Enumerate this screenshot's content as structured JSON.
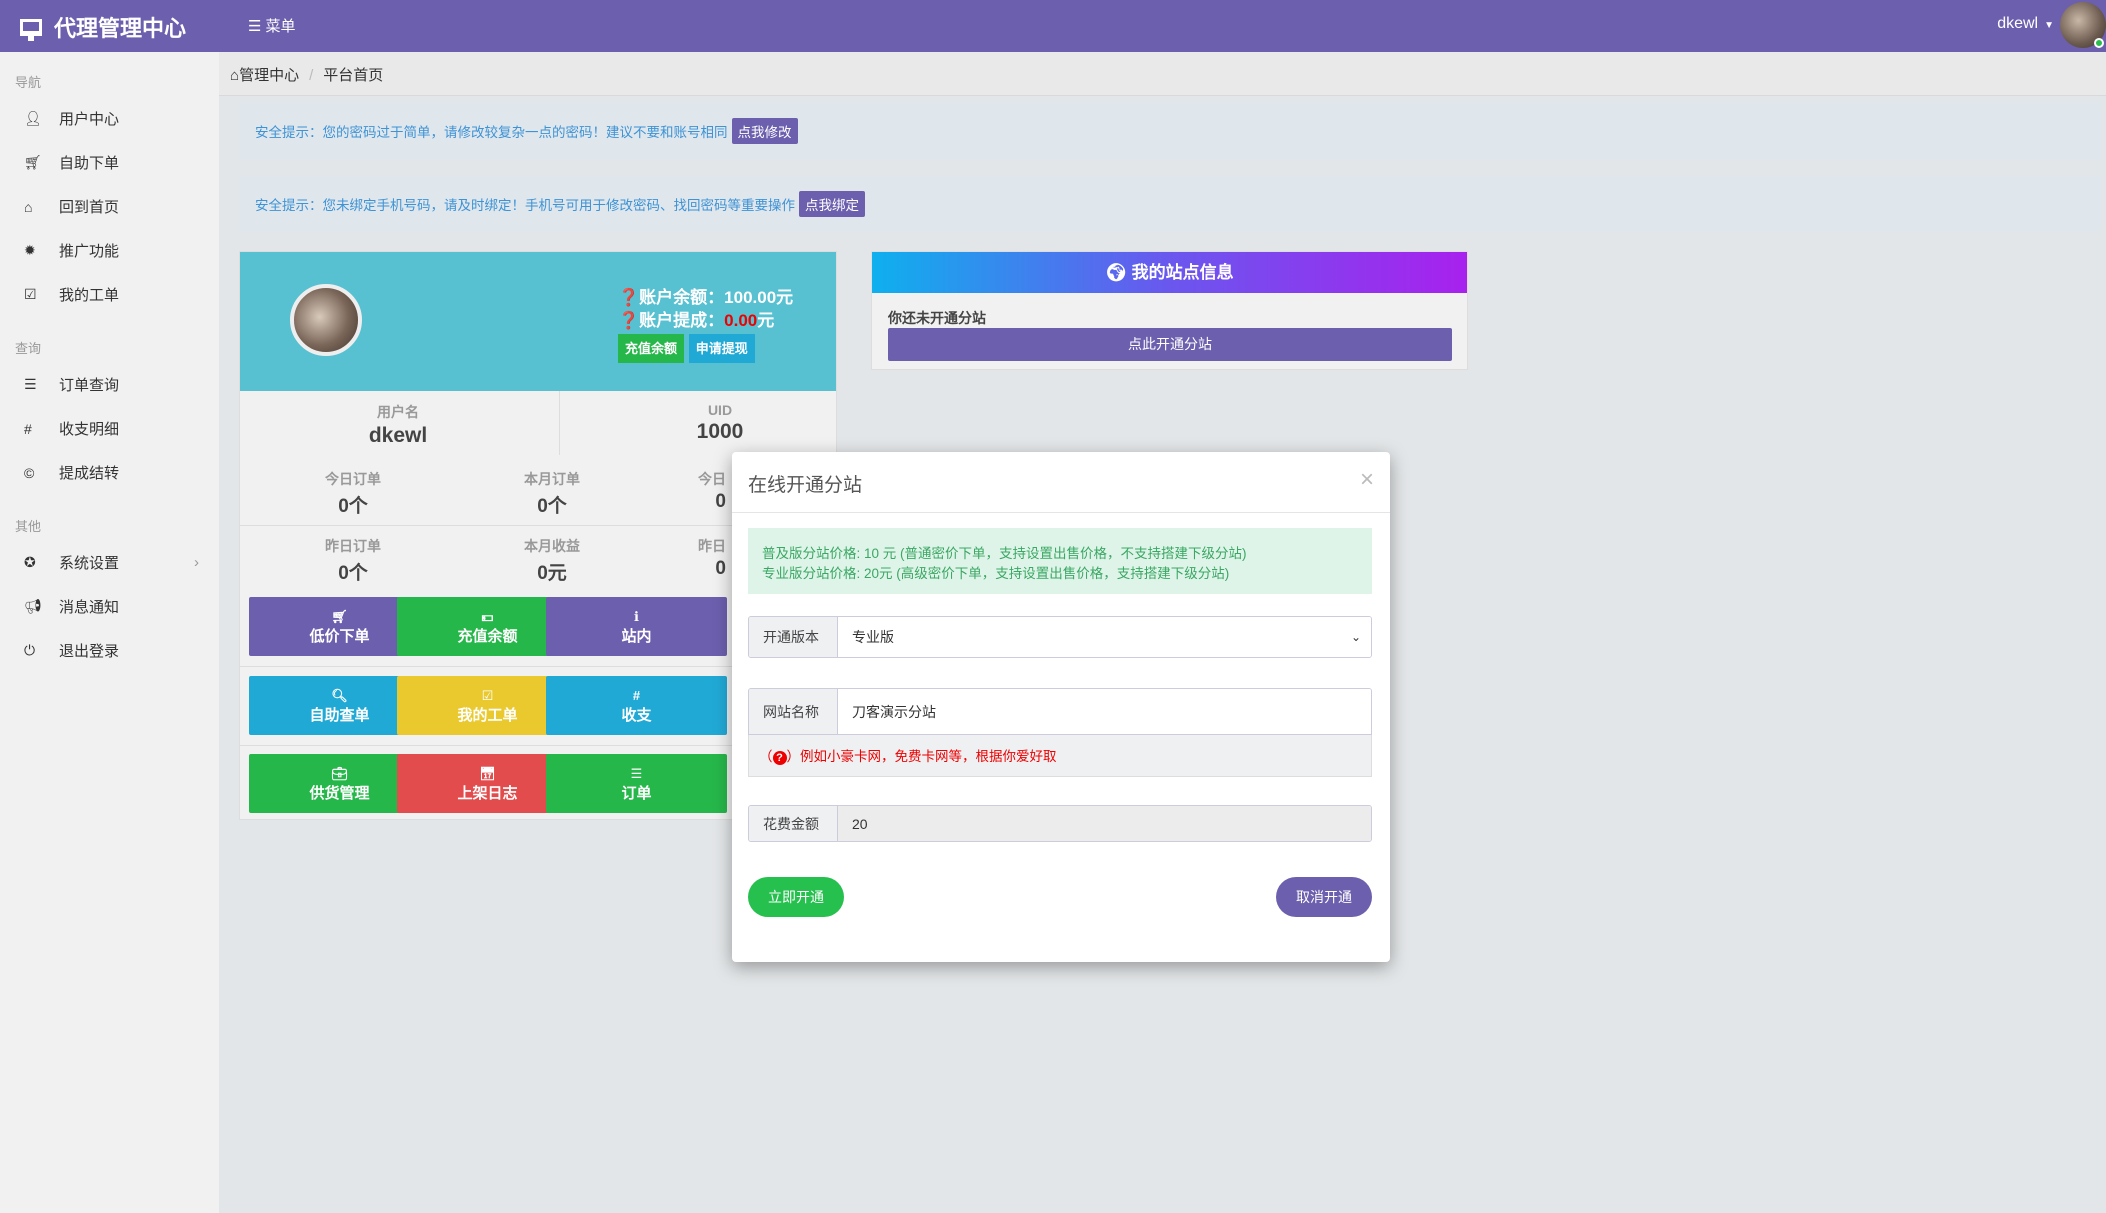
{
  "header": {
    "title": "代理管理中心",
    "menu": "菜单",
    "username": "dkewl"
  },
  "breadcrumb": {
    "home": "管理中心",
    "current": "平台首页"
  },
  "sidebar": {
    "sections": [
      {
        "title": "导航",
        "items": [
          {
            "label": "用户中心",
            "icon": "user-icon"
          },
          {
            "label": "自助下单",
            "icon": "cart-icon"
          },
          {
            "label": "回到首页",
            "icon": "home-icon"
          },
          {
            "label": "推广功能",
            "icon": "gear-icon"
          },
          {
            "label": "我的工单",
            "icon": "check-square-icon"
          }
        ]
      },
      {
        "title": "查询",
        "items": [
          {
            "label": "订单查询",
            "icon": "list-icon"
          },
          {
            "label": "收支明细",
            "icon": "hashtag-icon"
          },
          {
            "label": "提成结转",
            "icon": "copyright-icon"
          }
        ]
      },
      {
        "title": "其他",
        "items": [
          {
            "label": "系统设置",
            "icon": "rebel-icon"
          },
          {
            "label": "消息通知",
            "icon": "bullhorn-icon"
          },
          {
            "label": "退出登录",
            "icon": "power-icon"
          }
        ]
      }
    ]
  },
  "alerts": [
    {
      "text": "安全提示：您的密码过于简单，请修改较复杂一点的密码！建议不要和账号相同",
      "button": "点我修改"
    },
    {
      "text": "安全提示：您未绑定手机号码，请及时绑定！手机号可用于修改密码、找回密码等重要操作",
      "button": "点我绑定"
    }
  ],
  "profile": {
    "balance_label": "❓账户余额：",
    "balance": "100.00元",
    "commission_label": "❓账户提成：",
    "commission": "0.00",
    "commission_unit": "元",
    "recharge": "充值余额",
    "withdraw": "申请提现",
    "username_label": "用户名",
    "username": "dkewl",
    "uid_label": "UID",
    "uid": "1000",
    "stats": [
      {
        "label": "今日订单",
        "value": "0个"
      },
      {
        "label": "本月订单",
        "value": "0个"
      },
      {
        "label": "今日",
        "value": "0"
      },
      {
        "label": "昨日订单",
        "value": "0个"
      },
      {
        "label": "本月收益",
        "value": "0元"
      },
      {
        "label": "昨日",
        "value": "0"
      }
    ],
    "buttons": [
      {
        "label": "低价下单",
        "icon": "cart-icon",
        "color": "#6c5fae"
      },
      {
        "label": "充值余额",
        "icon": "money-icon",
        "color": "#26b74a"
      },
      {
        "label": "站内",
        "icon": "info-icon",
        "color": "#6c5fae"
      },
      {
        "label": "自助查单",
        "icon": "search-icon",
        "color": "#21a9d6"
      },
      {
        "label": "我的工单",
        "icon": "check-square-icon",
        "color": "#e9c92e"
      },
      {
        "label": "收支",
        "icon": "hashtag-icon",
        "color": "#21a9d6"
      },
      {
        "label": "供货管理",
        "icon": "briefcase-icon",
        "color": "#26b74a"
      },
      {
        "label": "上架日志",
        "icon": "calendar-icon",
        "color": "#e24c4c"
      },
      {
        "label": "订单",
        "icon": "list-icon",
        "color": "#26b74a"
      }
    ]
  },
  "site": {
    "title": "我的站点信息",
    "status": "你还未开通分站",
    "button": "点此开通分站"
  },
  "modal": {
    "title": "在线开通分站",
    "info": [
      "普及版分站价格: 10 元 (普通密价下单，支持设置出售价格，不支持搭建下级分站)",
      "专业版分站价格: 20元 (高级密价下单，支持设置出售价格，支持搭建下级分站)"
    ],
    "version_label": "开通版本",
    "version_value": "专业版",
    "name_label": "网站名称",
    "name_value": "刀客演示分站",
    "hint": "例如小豪卡网，免费卡网等，根据你爱好取",
    "cost_label": "花费金额",
    "cost_value": "20",
    "submit": "立即开通",
    "cancel": "取消开通"
  }
}
